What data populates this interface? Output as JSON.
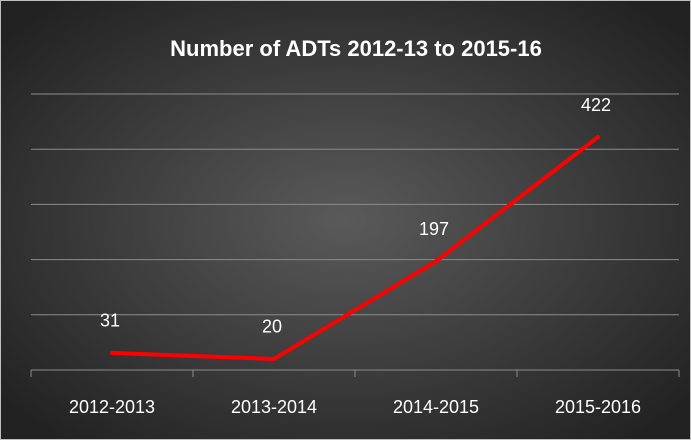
{
  "chart_data": {
    "type": "line",
    "title": "Number of ADTs 2012-13 to 2015-16",
    "categories": [
      "2012-2013",
      "2013-2014",
      "2014-2015",
      "2015-2016"
    ],
    "values": [
      31,
      20,
      197,
      422
    ],
    "color": "#ff0000",
    "ylim": [
      0,
      500
    ],
    "yticks": [
      0,
      100,
      200,
      300,
      400,
      500
    ],
    "grid": true
  }
}
